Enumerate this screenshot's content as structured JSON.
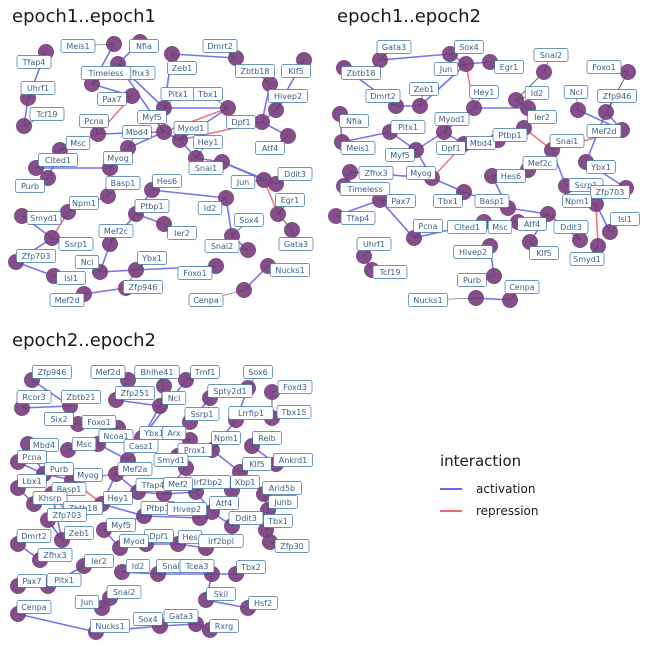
{
  "panels": [
    {
      "title": "epoch1..epoch1",
      "nodes": [
        "Meis1",
        "Nfia",
        "Dmrt2",
        "Tfap4",
        "Zfhx3",
        "Zeb1",
        "Zbtb18",
        "Klf5",
        "Uhrf1",
        "Timeless",
        "Pitx1",
        "Tbx1",
        "Hivep2",
        "Tcf19",
        "Pax7",
        "Myf5",
        "Myod1",
        "Dpf1",
        "Pcna",
        "Mbd4",
        "Msc",
        "Hey1",
        "Atf4",
        "Cited1",
        "Myog",
        "Hes6",
        "Snai1",
        "Ddit3",
        "Purb",
        "Basp1",
        "Jun",
        "Egr1",
        "Npm1",
        "Ptbp1",
        "Id2",
        "Smyd1",
        "Mef2c",
        "Ier2",
        "Sox4",
        "Ssrp1",
        "Zfp703",
        "Ncl",
        "Ybx1",
        "Snai2",
        "Gata3",
        "Isl1",
        "Foxo1",
        "Nucks1",
        "Zfp946",
        "Mef2d",
        "Cenpa"
      ]
    },
    {
      "title": "epoch1..epoch2",
      "nodes": [
        "Gata3",
        "Sox4",
        "Snai2",
        "Zbtb18",
        "Jun",
        "Egr1",
        "Foxo1",
        "Zeb1",
        "Hey1",
        "Id2",
        "Zfp946",
        "Dmrt2",
        "Ncl",
        "Nfia",
        "Pitx1",
        "Myod1",
        "Ier2",
        "Mef2d",
        "Meis1",
        "Myf5",
        "Dpf1",
        "Mbd4",
        "Ptbp1",
        "Snai1",
        "Zfhx3",
        "Myog",
        "Mef2c",
        "Hes6",
        "Ybx1",
        "Timeless",
        "Ssrp1",
        "Tbx1",
        "Basp1",
        "Zfp703",
        "Tfap4",
        "Pax7",
        "Pcna",
        "Cited1",
        "Msc",
        "Atf4",
        "Npm1",
        "Isl1",
        "Uhrf1",
        "Ddit3",
        "Hivep2",
        "Klf5",
        "Smyd1",
        "Tcf19",
        "Purb",
        "Cenpa",
        "Nucks1"
      ]
    },
    {
      "title": "epoch2..epoch2",
      "nodes": [
        "Zfp946",
        "Mef2d",
        "Bhlhe41",
        "Tmf1",
        "Sox6",
        "Zbtb21",
        "Zfp251",
        "Spty2d1",
        "Rcor3",
        "Foxd3",
        "Ncl",
        "Ssrp1",
        "Lrrfip1",
        "Six2",
        "Foxo1",
        "Tbx15",
        "Mbd4",
        "Ybx1",
        "Arx",
        "Npm1",
        "Relb",
        "Ncoa1",
        "Msc",
        "Casz1",
        "Pcna",
        "Prox1",
        "Ankrd1",
        "Smyd1",
        "Purb",
        "Lbx1",
        "Klf5",
        "Mef2a",
        "Myog",
        "Irf2bp2",
        "Xbp1",
        "Tfap4",
        "Mef2",
        "Basp1",
        "Khsrp",
        "Arid5b",
        "Hey1",
        "Zbtb18",
        "Ptbp1",
        "Atf4",
        "Junb",
        "Hivep2",
        "Zfp703",
        "Ddit3",
        "Tbx1",
        "Hes",
        "Myf5",
        "Zeb1",
        "Dpf1",
        "Irf2bpl",
        "Dmrt2",
        "Myod",
        "Zfp30",
        "Zfhx3",
        "Ier2",
        "Id2",
        "Snai",
        "Tcea3",
        "Tbx2",
        "Pax7",
        "Pitx1",
        "Skil",
        "Snai2",
        "Hsf2",
        "Jun",
        "Cenpa",
        "Nucks1",
        "Sox4",
        "Gata3",
        "Rxrg"
      ]
    }
  ],
  "legend": {
    "title": "interaction",
    "items": [
      {
        "label": "activation",
        "color": "#6666ee"
      },
      {
        "label": "repression",
        "color": "#ee6677"
      }
    ]
  },
  "colors": {
    "node": "#7a3f7e",
    "label_border": "#3a73a8",
    "label_text": "#3a5f8a"
  }
}
